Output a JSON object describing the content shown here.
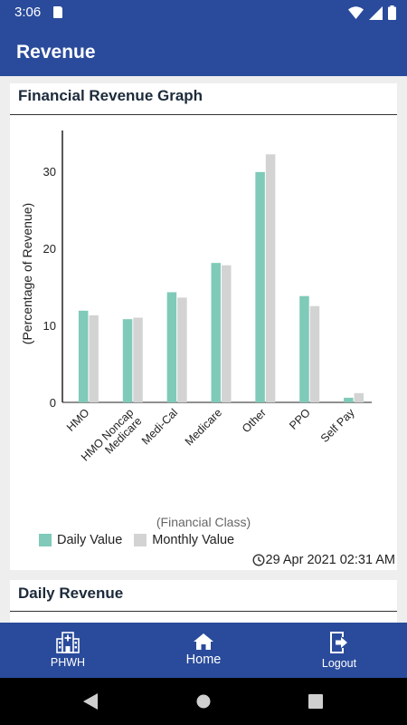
{
  "status_bar": {
    "time": "3:06"
  },
  "app_bar": {
    "title": "Revenue"
  },
  "graph_card": {
    "title": "Financial Revenue Graph",
    "timestamp": "29 Apr 2021 02:31 AM"
  },
  "chart_data": {
    "type": "bar",
    "categories": [
      "HMO",
      "HMO Noncap Medicare",
      "Medi-Cal",
      "Medicare",
      "Other",
      "PPO",
      "Self Pay"
    ],
    "category_lines": [
      [
        "HMO"
      ],
      [
        "HMO Noncap",
        "Medicare"
      ],
      [
        "Medi-Cal"
      ],
      [
        "Medicare"
      ],
      [
        "Other"
      ],
      [
        "PPO"
      ],
      [
        "Self Pay"
      ]
    ],
    "series": [
      {
        "name": "Daily Value",
        "color": "#7fcab8",
        "values": [
          11.9,
          10.8,
          14.3,
          18.1,
          29.9,
          13.8,
          0.6
        ]
      },
      {
        "name": "Monthly Value",
        "color": "#d3d3d3",
        "values": [
          11.3,
          11.0,
          13.6,
          17.8,
          32.2,
          12.5,
          1.2
        ]
      }
    ],
    "ylabel": "(Percentage of Revenue)",
    "xlabel": "(Financial Class)",
    "yticks": [
      0,
      10,
      20,
      30
    ],
    "ylim": [
      0,
      35
    ],
    "grid": false,
    "legend_position": "bottom-left"
  },
  "daily_card": {
    "title": "Daily Revenue"
  },
  "bottom_nav": {
    "items": [
      {
        "label": "PHWH",
        "icon": "hospital-icon"
      },
      {
        "label": "Home",
        "icon": "home-icon"
      },
      {
        "label": "Logout",
        "icon": "logout-icon"
      }
    ]
  },
  "colors": {
    "primary": "#2a4b9b",
    "daily": "#7fcab8",
    "monthly": "#d3d3d3"
  }
}
